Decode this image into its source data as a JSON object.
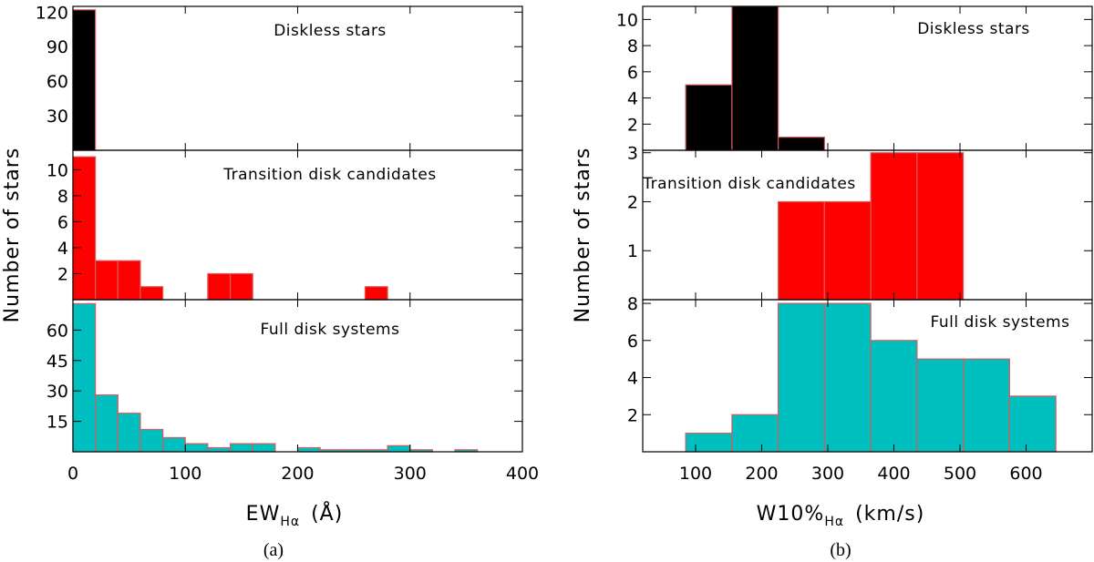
{
  "figure": {
    "y_axis_label": "Number of stars",
    "captions": [
      "(a)",
      "(b)"
    ]
  },
  "chart_data": [
    {
      "type": "bar",
      "panel": "a",
      "xlabel": "EW",
      "xlabel_sub": "Hα",
      "xlabel_unit": "(Å)",
      "xlim": [
        0,
        400
      ],
      "xticks": [
        0,
        100,
        200,
        300,
        400
      ],
      "bin_width": 20,
      "rows": [
        {
          "title": "Diskless stars",
          "color": "#000000",
          "ylim": [
            0,
            125
          ],
          "yticks": [
            30,
            60,
            90,
            120
          ],
          "bins": [
            {
              "x0": 0,
              "x1": 20,
              "value": 122
            }
          ]
        },
        {
          "title": "Transition disk candidates",
          "color": "#ff0000",
          "ylim": [
            0,
            11.5
          ],
          "yticks": [
            2,
            4,
            6,
            8,
            10
          ],
          "bins": [
            {
              "x0": 0,
              "x1": 20,
              "value": 11
            },
            {
              "x0": 20,
              "x1": 40,
              "value": 3
            },
            {
              "x0": 40,
              "x1": 60,
              "value": 3
            },
            {
              "x0": 60,
              "x1": 80,
              "value": 1
            },
            {
              "x0": 120,
              "x1": 140,
              "value": 2
            },
            {
              "x0": 140,
              "x1": 160,
              "value": 2
            },
            {
              "x0": 260,
              "x1": 280,
              "value": 1
            }
          ]
        },
        {
          "title": "Full disk systems",
          "color": "#00bfbf",
          "ylim": [
            0,
            75
          ],
          "yticks": [
            15,
            30,
            45,
            60
          ],
          "bins": [
            {
              "x0": 0,
              "x1": 20,
              "value": 73
            },
            {
              "x0": 20,
              "x1": 40,
              "value": 28
            },
            {
              "x0": 40,
              "x1": 60,
              "value": 19
            },
            {
              "x0": 60,
              "x1": 80,
              "value": 11
            },
            {
              "x0": 80,
              "x1": 100,
              "value": 7
            },
            {
              "x0": 100,
              "x1": 120,
              "value": 4
            },
            {
              "x0": 120,
              "x1": 140,
              "value": 2
            },
            {
              "x0": 140,
              "x1": 160,
              "value": 4
            },
            {
              "x0": 160,
              "x1": 180,
              "value": 4
            },
            {
              "x0": 180,
              "x1": 200,
              "value": 0
            },
            {
              "x0": 200,
              "x1": 220,
              "value": 2
            },
            {
              "x0": 220,
              "x1": 240,
              "value": 1
            },
            {
              "x0": 240,
              "x1": 260,
              "value": 1
            },
            {
              "x0": 260,
              "x1": 280,
              "value": 1
            },
            {
              "x0": 280,
              "x1": 300,
              "value": 3
            },
            {
              "x0": 300,
              "x1": 320,
              "value": 1
            },
            {
              "x0": 320,
              "x1": 340,
              "value": 0
            },
            {
              "x0": 340,
              "x1": 360,
              "value": 1
            }
          ]
        }
      ]
    },
    {
      "type": "bar",
      "panel": "b",
      "xlabel": "W10%",
      "xlabel_sub": "Hα",
      "xlabel_unit": "(km/s)",
      "xlim": [
        20,
        700
      ],
      "xticks": [
        100,
        200,
        300,
        400,
        500,
        600
      ],
      "bin_width": 70,
      "rows": [
        {
          "title": "Diskless stars",
          "color": "#000000",
          "ylim": [
            0,
            11
          ],
          "yticks": [
            2,
            4,
            6,
            8,
            10
          ],
          "bins": [
            {
              "x0": 85,
              "x1": 155,
              "value": 5
            },
            {
              "x0": 155,
              "x1": 225,
              "value": 11
            },
            {
              "x0": 225,
              "x1": 295,
              "value": 1
            }
          ]
        },
        {
          "title": "Transition disk candidates",
          "color": "#ff0000",
          "ylim": [
            0,
            3.05
          ],
          "yticks": [
            1,
            2,
            3
          ],
          "bins": [
            {
              "x0": 225,
              "x1": 295,
              "value": 2
            },
            {
              "x0": 295,
              "x1": 365,
              "value": 2
            },
            {
              "x0": 365,
              "x1": 435,
              "value": 3
            },
            {
              "x0": 435,
              "x1": 505,
              "value": 3
            }
          ]
        },
        {
          "title": "Full disk systems",
          "color": "#00bfbf",
          "ylim": [
            0,
            8.2
          ],
          "yticks": [
            2,
            4,
            6,
            8
          ],
          "bins": [
            {
              "x0": 85,
              "x1": 155,
              "value": 1
            },
            {
              "x0": 155,
              "x1": 225,
              "value": 2
            },
            {
              "x0": 225,
              "x1": 295,
              "value": 8
            },
            {
              "x0": 295,
              "x1": 365,
              "value": 8
            },
            {
              "x0": 365,
              "x1": 435,
              "value": 6
            },
            {
              "x0": 435,
              "x1": 505,
              "value": 5
            },
            {
              "x0": 505,
              "x1": 575,
              "value": 5
            },
            {
              "x0": 575,
              "x1": 645,
              "value": 3
            }
          ]
        }
      ]
    }
  ]
}
